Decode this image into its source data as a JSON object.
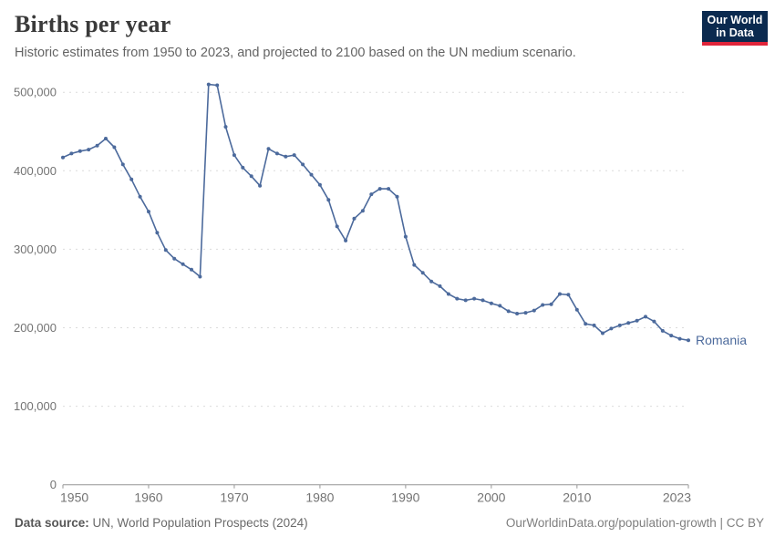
{
  "header": {
    "title": "Births per year",
    "subtitle": "Historic estimates from 1950 to 2023, and projected to 2100 based on the UN medium scenario.",
    "logo": {
      "line1": "Our World",
      "line2": "in Data"
    }
  },
  "chart_data": {
    "type": "line",
    "title": "Births per year",
    "entity": "Romania",
    "end_label": "Romania",
    "legend_position": "end-of-line",
    "grid": "horizontal-dashed",
    "xlim": [
      1950,
      2023
    ],
    "ylim": [
      0,
      500000
    ],
    "x_ticks": [
      1950,
      1960,
      1970,
      1980,
      1990,
      2000,
      2010,
      2023
    ],
    "y_ticks": [
      0,
      100000,
      200000,
      300000,
      400000,
      500000
    ],
    "y_tick_labels": [
      "0",
      "100,000",
      "200,000",
      "300,000",
      "400,000",
      "500,000"
    ],
    "xlabel": "",
    "ylabel": "",
    "series": [
      {
        "name": "Romania",
        "color": "#4C6A9C",
        "x": [
          1950,
          1951,
          1952,
          1953,
          1954,
          1955,
          1956,
          1957,
          1958,
          1959,
          1960,
          1961,
          1962,
          1963,
          1964,
          1965,
          1966,
          1967,
          1968,
          1969,
          1970,
          1971,
          1972,
          1973,
          1974,
          1975,
          1976,
          1977,
          1978,
          1979,
          1980,
          1981,
          1982,
          1983,
          1984,
          1985,
          1986,
          1987,
          1988,
          1989,
          1990,
          1991,
          1992,
          1993,
          1994,
          1995,
          1996,
          1997,
          1998,
          1999,
          2000,
          2001,
          2002,
          2003,
          2004,
          2005,
          2006,
          2007,
          2008,
          2009,
          2010,
          2011,
          2012,
          2013,
          2014,
          2015,
          2016,
          2017,
          2018,
          2019,
          2020,
          2021,
          2022,
          2023
        ],
        "values": [
          417000,
          422000,
          425000,
          427000,
          432000,
          441000,
          430000,
          408000,
          389000,
          367000,
          348000,
          321000,
          299000,
          288000,
          281000,
          274000,
          265000,
          510000,
          509000,
          456000,
          420000,
          404000,
          393000,
          381000,
          428000,
          422000,
          418000,
          420000,
          408000,
          395000,
          382000,
          363000,
          329000,
          311000,
          339000,
          349000,
          370000,
          377000,
          377000,
          367000,
          316000,
          280000,
          270000,
          259000,
          253000,
          243000,
          237000,
          235000,
          237000,
          235000,
          231000,
          228000,
          221000,
          218000,
          219000,
          222000,
          229000,
          230000,
          243000,
          242000,
          223000,
          205000,
          203000,
          193000,
          199000,
          203000,
          206000,
          209000,
          214000,
          208000,
          196000,
          190000,
          186000,
          184000
        ]
      }
    ]
  },
  "footer": {
    "source_label": "Data source:",
    "source_text": " UN, World Population Prospects (2024)",
    "credit": "OurWorldinData.org/population-growth | CC BY"
  },
  "colors": {
    "line": "#4C6A9C",
    "gridline": "#dcdcdc",
    "axis": "#969696",
    "tick_label": "#737373",
    "logo_bg": "#0b2a4f",
    "logo_red": "#e0243a"
  }
}
